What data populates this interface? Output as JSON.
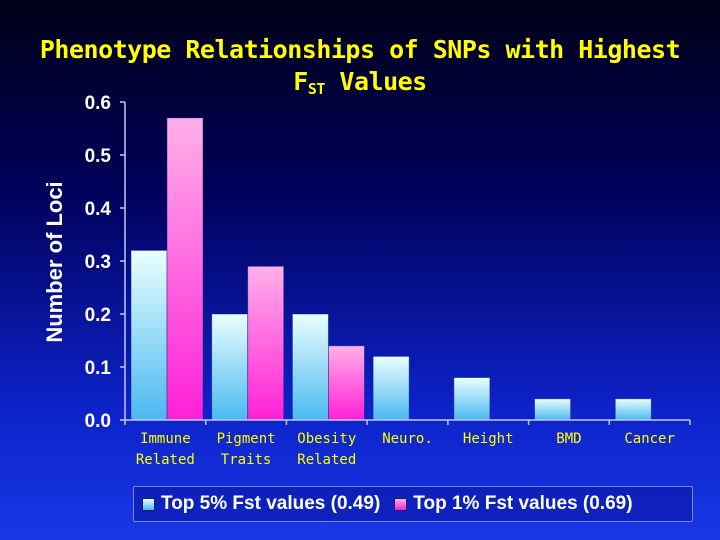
{
  "title_line1": "Phenotype Relationships of SNPs with Highest",
  "title_f": "F",
  "title_sub": "ST",
  "title_end": " Values",
  "chart_data": {
    "type": "bar",
    "ylabel": "Number of Loci",
    "ylim": [
      0,
      0.6
    ],
    "yticks": [
      "0.0",
      "0.1",
      "0.2",
      "0.3",
      "0.4",
      "0.5",
      "0.6"
    ],
    "categories": [
      [
        "Immune",
        "Related"
      ],
      [
        "Pigment",
        "Traits"
      ],
      [
        "Obesity",
        "Related"
      ],
      [
        "Neuro.",
        ""
      ],
      [
        "Height",
        ""
      ],
      [
        "BMD",
        ""
      ],
      [
        "Cancer",
        ""
      ]
    ],
    "series": [
      {
        "name": "Top 5% Fst values (0.49)",
        "values": [
          0.32,
          0.2,
          0.2,
          0.12,
          0.08,
          0.04,
          0.04
        ],
        "color": "#4ab8f0"
      },
      {
        "name": "Top 1% Fst values (0.69)",
        "values": [
          0.57,
          0.29,
          0.14,
          0,
          0,
          0,
          0
        ],
        "color": "#ff20d8"
      }
    ],
    "grid": false,
    "legend_position": "bottom"
  },
  "colors": {
    "title": "#ffff00",
    "axis_text": "#ffffff",
    "category_text": "#ffff00"
  }
}
